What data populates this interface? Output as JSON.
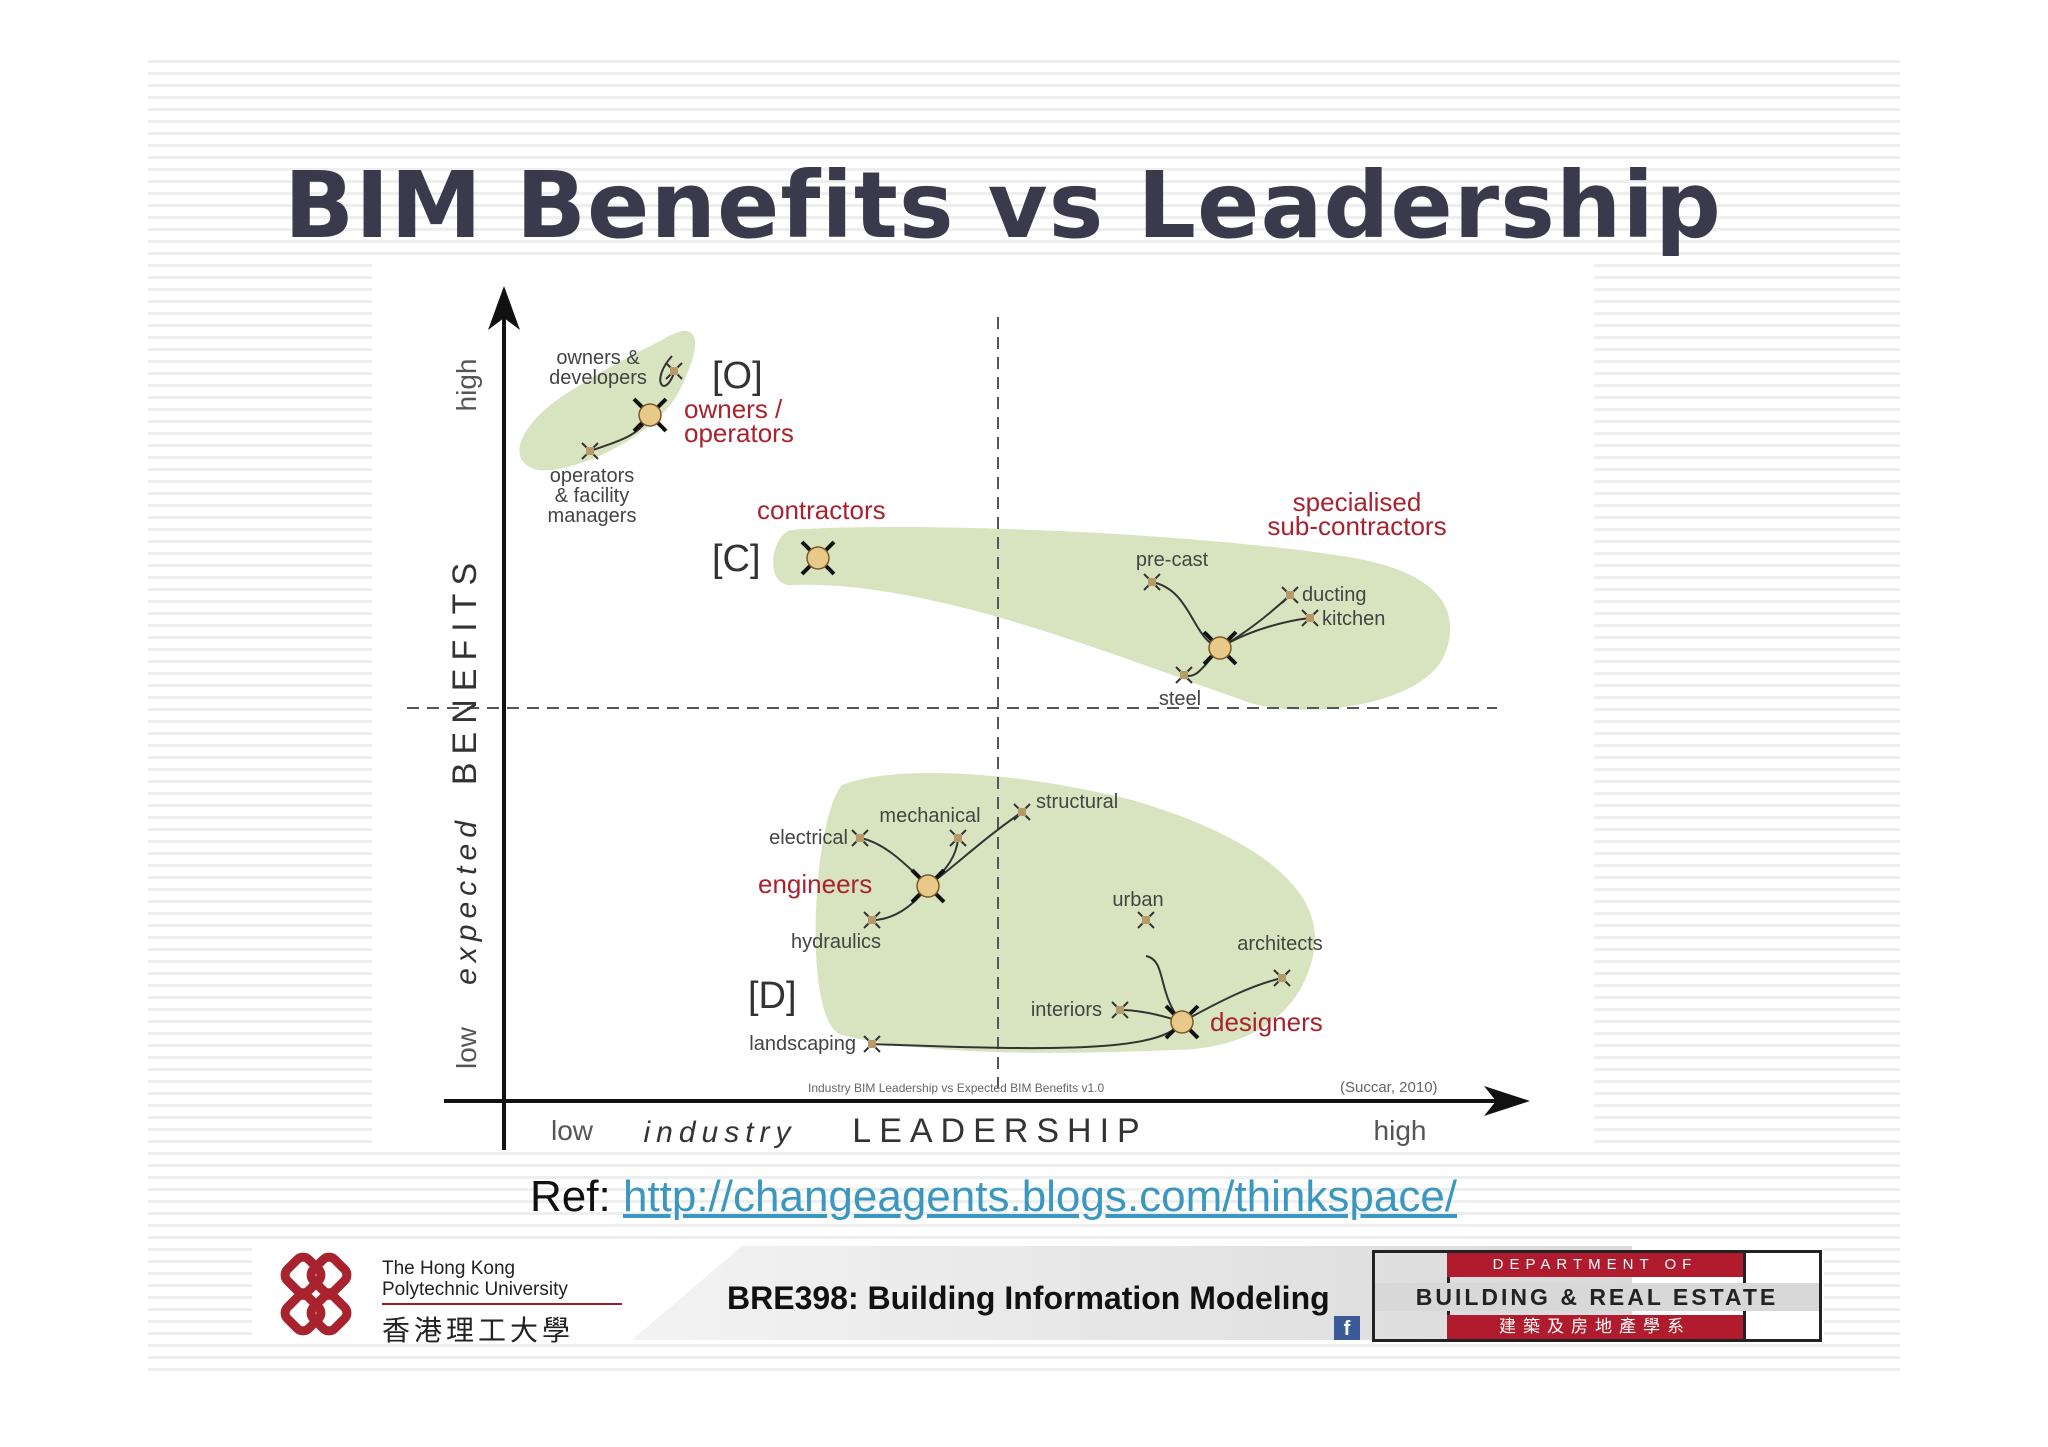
{
  "slide": {
    "title": "BIM Benefits vs Leadership",
    "ref_label": "Ref:",
    "ref_url": "http://changeagents.blogs.com/thinkspace/"
  },
  "diagram": {
    "y_axis": {
      "prefix": "expected",
      "main": "BENEFITS",
      "low": "low",
      "high": "high"
    },
    "x_axis": {
      "prefix": "industry",
      "main": "LEADERSHIP",
      "low": "low",
      "high": "high"
    },
    "caption": "Industry BIM Leadership vs Expected BIM Benefits v1.0",
    "credit": "(Succar, 2010)",
    "groups": [
      {
        "code": "[O]",
        "label": [
          "owners /",
          "operators"
        ],
        "members": [
          {
            "label": [
              "owners &",
              "developers"
            ]
          },
          {
            "label": [
              "operators",
              "& facility",
              "managers"
            ]
          }
        ]
      },
      {
        "code": "[C]",
        "label": [
          "contractors"
        ],
        "members": []
      },
      {
        "code": "",
        "label": [
          "specialised",
          "sub-contractors"
        ],
        "members": [
          {
            "label": [
              "pre-cast"
            ]
          },
          {
            "label": [
              "ducting"
            ]
          },
          {
            "label": [
              "kitchen"
            ]
          },
          {
            "label": [
              "steel"
            ]
          }
        ]
      },
      {
        "code": "[D]",
        "label": [
          "engineers"
        ],
        "members": [
          {
            "label": [
              "electrical"
            ]
          },
          {
            "label": [
              "mechanical"
            ]
          },
          {
            "label": [
              "structural"
            ]
          },
          {
            "label": [
              "hydraulics"
            ]
          }
        ]
      },
      {
        "code": "",
        "label": [
          "designers"
        ],
        "members": [
          {
            "label": [
              "urban"
            ]
          },
          {
            "label": [
              "architects"
            ]
          },
          {
            "label": [
              "interiors"
            ]
          },
          {
            "label": [
              "landscaping"
            ]
          }
        ]
      }
    ]
  },
  "footer": {
    "course": "BRE398: Building Information Modeling",
    "university_en_1": "The Hong Kong",
    "university_en_2": "Polytechnic University",
    "university_cn": "香港理工大學",
    "dept_line_1": "DEPARTMENT OF",
    "dept_line_2": "BUILDING & REAL ESTATE",
    "dept_line_3": "建築及房地產學系",
    "social_icon": "facebook-icon"
  },
  "colors": {
    "title": "#3a3a4c",
    "blob": "#d8e4bf",
    "accent_red": "#a8232e",
    "link": "#3a97c0"
  }
}
